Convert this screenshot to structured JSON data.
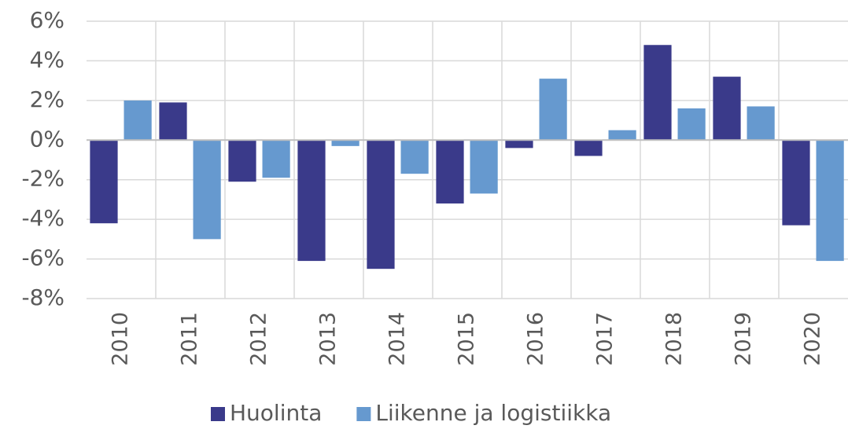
{
  "chart_data": {
    "type": "bar",
    "categories": [
      "2010",
      "2011",
      "2012",
      "2013",
      "2014",
      "2015",
      "2016",
      "2017",
      "2018",
      "2019",
      "2020"
    ],
    "series": [
      {
        "name": "Huolinta",
        "color": "#3a3a8a",
        "values": [
          -4.2,
          1.9,
          -2.1,
          -6.1,
          -6.5,
          -3.2,
          -0.4,
          -0.8,
          4.8,
          3.2,
          -4.3
        ]
      },
      {
        "name": "Liikenne ja logistiikka",
        "color": "#6699cf",
        "values": [
          2.0,
          -5.0,
          -1.9,
          -0.3,
          -1.7,
          -2.7,
          3.1,
          0.5,
          1.6,
          1.7,
          -6.1
        ]
      }
    ],
    "ylim": [
      -8,
      6
    ],
    "yticks": [
      {
        "value": -8,
        "label": "-8%"
      },
      {
        "value": -6,
        "label": "-6%"
      },
      {
        "value": -4,
        "label": "-4%"
      },
      {
        "value": -2,
        "label": "-2%"
      },
      {
        "value": 0,
        "label": "0%"
      },
      {
        "value": 2,
        "label": "2%"
      },
      {
        "value": 4,
        "label": "4%"
      },
      {
        "value": 6,
        "label": "6%"
      }
    ],
    "grid": true
  }
}
